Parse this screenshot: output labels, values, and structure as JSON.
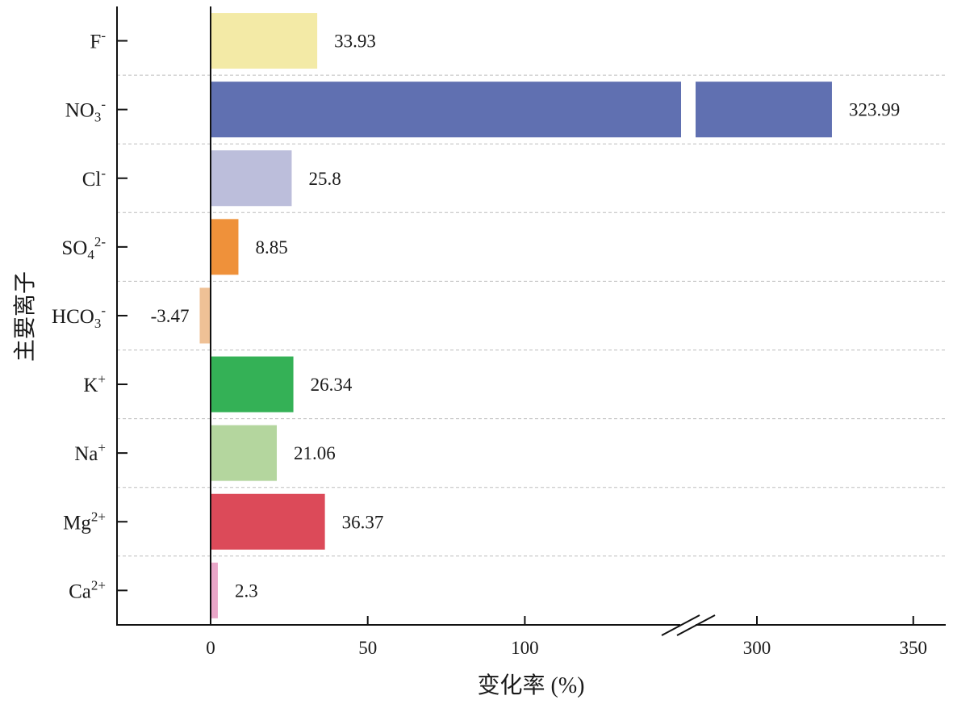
{
  "chart_data": {
    "type": "bar",
    "orientation": "horizontal",
    "title": "",
    "xlabel": "变化率 (%)",
    "ylabel": "主要离子",
    "grid": "dashed horizontal separators",
    "axis_break": {
      "from": 150,
      "to": 275
    },
    "x_ticks": [
      "0",
      "50",
      "100",
      "300",
      "350"
    ],
    "categories": [
      {
        "base": "F",
        "sub": "",
        "sup": "-"
      },
      {
        "base": "NO",
        "sub": "3",
        "sup": "-"
      },
      {
        "base": "Cl",
        "sub": "",
        "sup": "-"
      },
      {
        "base": "SO",
        "sub": "4",
        "sup": "2-"
      },
      {
        "base": "HCO",
        "sub": "3",
        "sup": "-"
      },
      {
        "base": "K",
        "sub": "",
        "sup": "+"
      },
      {
        "base": "Na",
        "sub": "",
        "sup": "+"
      },
      {
        "base": "Mg",
        "sub": "",
        "sup": "2+"
      },
      {
        "base": "Ca",
        "sub": "",
        "sup": "2+"
      }
    ],
    "values": [
      33.93,
      323.99,
      25.8,
      8.85,
      -3.47,
      26.34,
      21.06,
      36.37,
      2.3
    ],
    "value_labels": [
      "33.93",
      "323.99",
      "25.8",
      "8.85",
      "-3.47",
      "26.34",
      "21.06",
      "36.37",
      "2.3"
    ],
    "colors": [
      "#f3eaa6",
      "#6070b1",
      "#bcbedb",
      "#ef913a",
      "#efc196",
      "#34b156",
      "#b4d69e",
      "#dc4a59",
      "#e9a6c8"
    ]
  }
}
